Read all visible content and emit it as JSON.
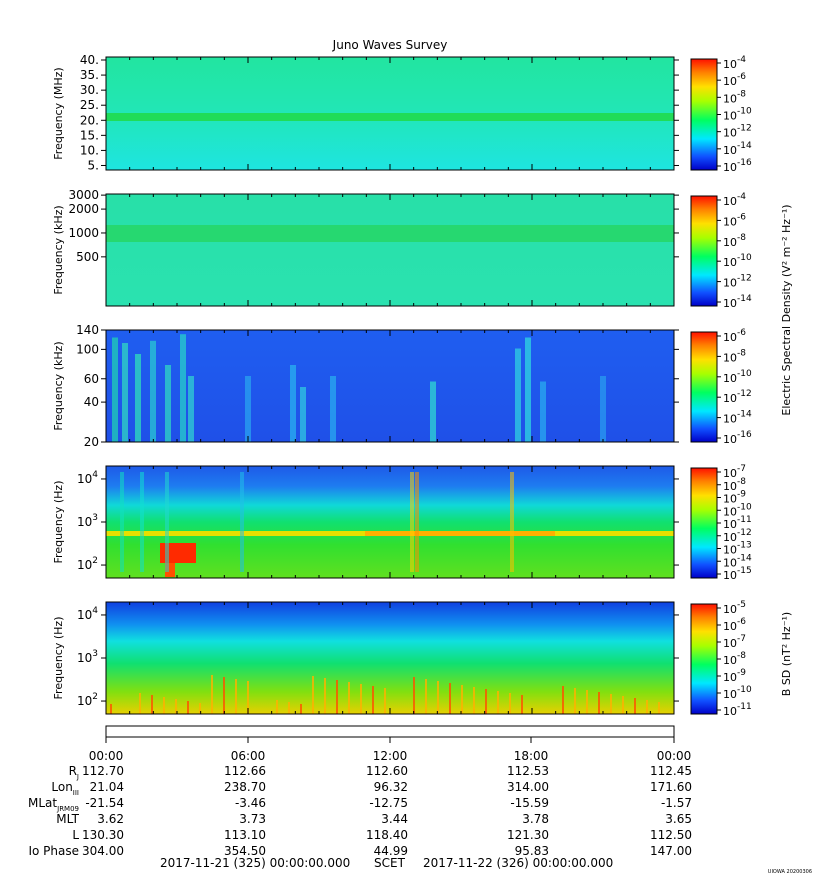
{
  "title": "Juno Waves Survey",
  "colors": {
    "background_high": "#1ee8d8",
    "band": "#22dd55",
    "deep": "#1f4fe8",
    "hot": "#ff2a00"
  },
  "panels": [
    {
      "ylabel": "Frequency (MHz)",
      "yticks": [
        "40.",
        "35.",
        "30.",
        "25.",
        "20.",
        "15.",
        "10.",
        "5."
      ],
      "yvals": [
        40,
        35,
        30,
        25,
        20,
        15,
        10,
        5
      ],
      "ylim": [
        3.5,
        41
      ],
      "scale": "linear",
      "cbar_ticks": [
        "-4",
        "-6",
        "-8",
        "-10",
        "-12",
        "-14",
        "-16"
      ]
    },
    {
      "ylabel": "Frequency (kHz)",
      "yticks": [
        "3000",
        "2000",
        "1000",
        "500"
      ],
      "yvals": [
        3000,
        2000,
        1000,
        500
      ],
      "ylim": [
        120,
        3100
      ],
      "scale": "log",
      "cbar_ticks": [
        "-4",
        "-6",
        "-8",
        "-10",
        "-12",
        "-14"
      ]
    },
    {
      "ylabel": "Frequency (kHz)",
      "yticks": [
        "140",
        "100",
        "60",
        "40",
        "20"
      ],
      "yvals": [
        140,
        100,
        60,
        40,
        20
      ],
      "ylim": [
        20,
        140
      ],
      "scale": "log",
      "cbar_ticks": [
        "-6",
        "-8",
        "-10",
        "-12",
        "-14",
        "-16"
      ]
    },
    {
      "ylabel": "Frequency (Hz)",
      "yticks": [
        "4",
        "3",
        "2"
      ],
      "yvals": [
        10000,
        1000,
        100
      ],
      "ylim": [
        50,
        20000
      ],
      "scale": "log",
      "cbar_ticks": [
        "-7",
        "-8",
        "-9",
        "-10",
        "-11",
        "-12",
        "-13",
        "-14",
        "-15"
      ]
    },
    {
      "ylabel": "Frequency (Hz)",
      "yticks": [
        "4",
        "3",
        "2"
      ],
      "yvals": [
        10000,
        1000,
        100
      ],
      "ylim": [
        50,
        20000
      ],
      "scale": "log",
      "cbar_ticks": [
        "-5",
        "-6",
        "-7",
        "-8",
        "-9",
        "-10",
        "-11"
      ]
    }
  ],
  "colorbar_label_e": "Electric Spectral Density (V² m⁻² Hz⁻¹)",
  "colorbar_label_b": "B SD (nT² Hz⁻¹)",
  "ephemeris": {
    "times": [
      "00:00",
      "06:00",
      "12:00",
      "18:00",
      "00:00"
    ],
    "rows": [
      {
        "label": "R",
        "sub": "J",
        "values": [
          "112.70",
          "112.66",
          "112.60",
          "112.53",
          "112.45"
        ]
      },
      {
        "label": "Lon",
        "sub": "III",
        "values": [
          "21.04",
          "238.70",
          "96.32",
          "314.00",
          "171.60"
        ]
      },
      {
        "label": "MLat",
        "sub": "JRM09",
        "values": [
          "-21.54",
          "-3.46",
          "-12.75",
          "-15.59",
          "-1.57"
        ]
      },
      {
        "label": "MLT",
        "sub": "",
        "values": [
          "3.62",
          "3.73",
          "3.44",
          "3.78",
          "3.65"
        ]
      },
      {
        "label": "L",
        "sub": "",
        "values": [
          "130.30",
          "113.10",
          "118.40",
          "121.30",
          "112.50"
        ]
      },
      {
        "label": "Io Phase",
        "sub": "",
        "values": [
          "304.00",
          "354.50",
          "44.99",
          "95.83",
          "147.00"
        ]
      }
    ]
  },
  "footer": {
    "start": "2017-11-21 (325) 00:00:00.000",
    "scet": "SCET",
    "end": "2017-11-22 (326) 00:00:00.000",
    "credit": "UIOWA 20200306"
  },
  "chart_data": {
    "type": "heatmap",
    "title": "Juno Waves Survey",
    "x_range": [
      "2017-11-21 00:00",
      "2017-11-22 00:00"
    ],
    "x_ticks": [
      "00:00",
      "06:00",
      "12:00",
      "18:00",
      "00:00"
    ],
    "panels": [
      {
        "ylabel": "Frequency (MHz)",
        "ylim": [
          5,
          40
        ],
        "yscale": "linear",
        "colorbar_exponent_range": [
          -16,
          -4
        ]
      },
      {
        "ylabel": "Frequency (kHz)",
        "ylim": [
          150,
          3000
        ],
        "yscale": "log",
        "colorbar_exponent_range": [
          -14,
          -4
        ]
      },
      {
        "ylabel": "Frequency (kHz)",
        "ylim": [
          20,
          140
        ],
        "yscale": "log",
        "colorbar_exponent_range": [
          -16,
          -6
        ]
      },
      {
        "ylabel": "Frequency (Hz)",
        "ylim": [
          50,
          20000
        ],
        "yscale": "log",
        "colorbar_exponent_range": [
          -15,
          -7
        ]
      },
      {
        "ylabel": "Frequency (Hz)",
        "ylim": [
          50,
          20000
        ],
        "yscale": "log",
        "colorbar_exponent_range": [
          -11,
          -5
        ]
      }
    ]
  }
}
